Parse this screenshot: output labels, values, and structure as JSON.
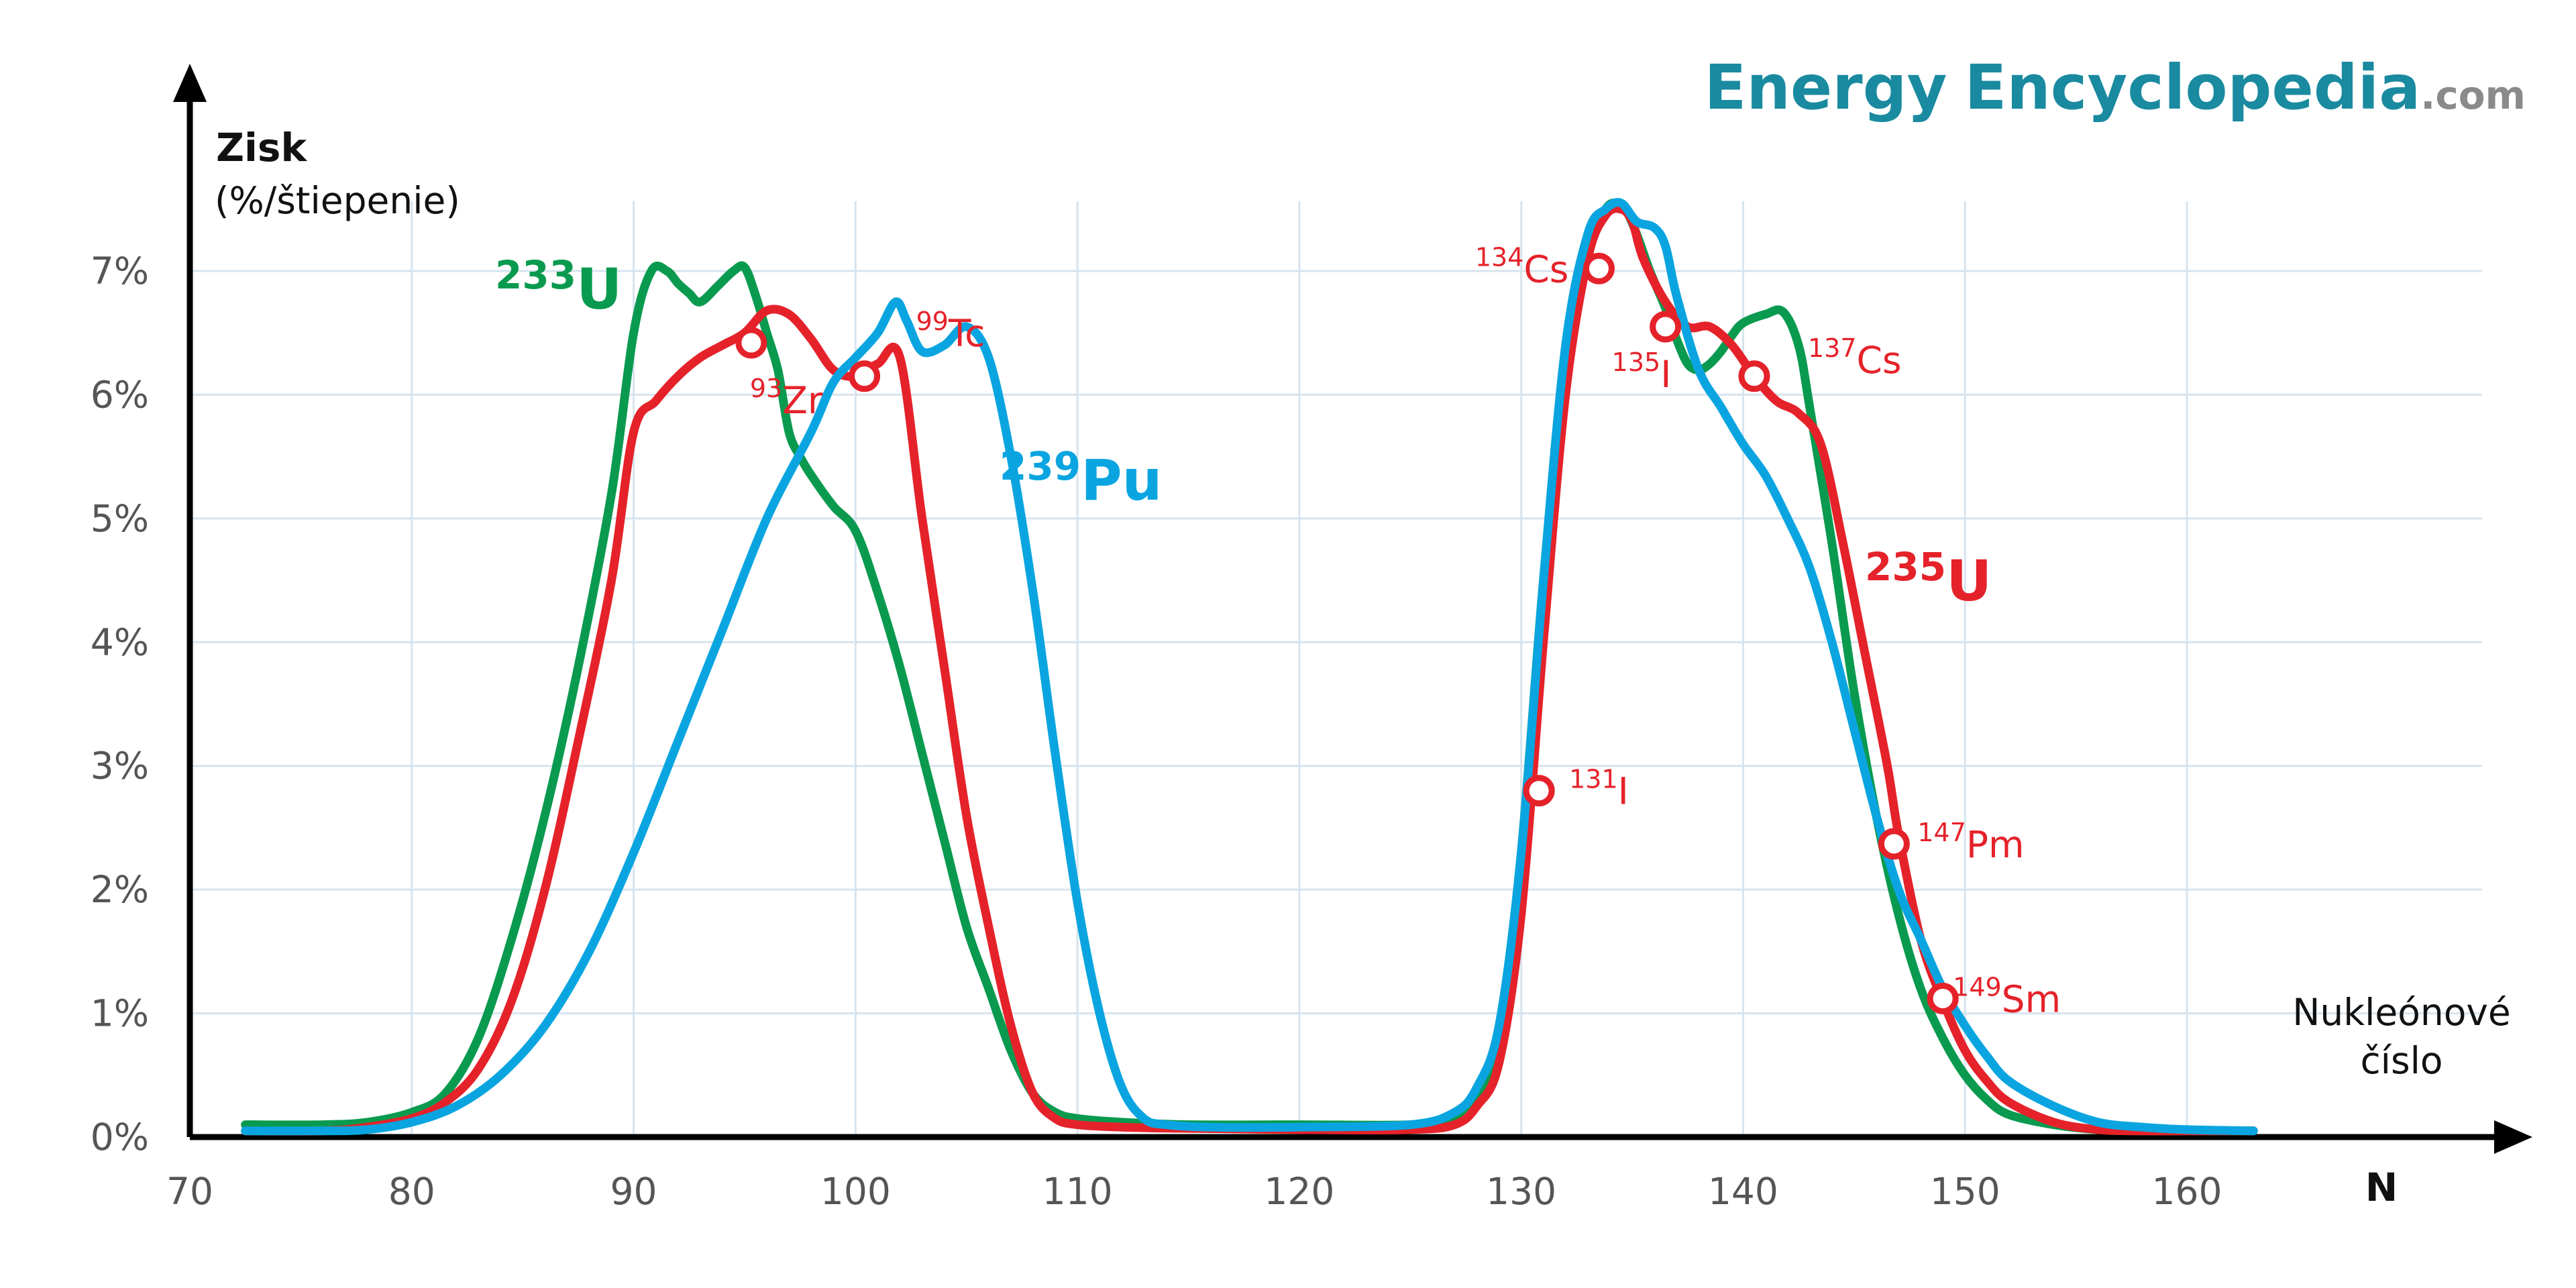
{
  "brand": {
    "part1": "Energy",
    "part2": "Encyclopedia",
    "suffix": ".com",
    "color": "#1a8aa0",
    "suffix_color": "#8a8a8a"
  },
  "chart_data": {
    "type": "line",
    "title": "",
    "ylabel": "Zisk",
    "ylabel_unit": "(%/štiepenie)",
    "xlabel": "Nukleónové",
    "xlabel_line2": "číslo",
    "xlabel_symbol": "N",
    "xlim": [
      70,
      165
    ],
    "ylim": [
      0,
      7.8
    ],
    "grid": true,
    "x_ticks": [
      70,
      80,
      90,
      100,
      110,
      120,
      130,
      140,
      150,
      160
    ],
    "x_tick_labels": [
      "70",
      "80",
      "90",
      "100",
      "110",
      "120",
      "130",
      "140",
      "150",
      "160"
    ],
    "y_ticks": [
      0,
      1,
      2,
      3,
      4,
      5,
      6,
      7
    ],
    "y_tick_labels": [
      "0%",
      "1%",
      "2%",
      "3%",
      "4%",
      "5%",
      "6%",
      "7%"
    ],
    "series": [
      {
        "name": "U",
        "mass": "233",
        "color": "#0a9a4f",
        "x": [
          72.5,
          76,
          78,
          80,
          81.5,
          83,
          84.5,
          86,
          87.5,
          89,
          90,
          90.8,
          91.5,
          92,
          92.5,
          93,
          93.8,
          94.5,
          95,
          95.5,
          96,
          96.5,
          97,
          97.5,
          98,
          99,
          100,
          101,
          102,
          103,
          104,
          105,
          106,
          107,
          108,
          109,
          110,
          112,
          115,
          120,
          125,
          127,
          128,
          129,
          130,
          131,
          132,
          133,
          133.8,
          134.3,
          134.7,
          135.2,
          135.8,
          136.5,
          137,
          137.5,
          138,
          138.5,
          139,
          139.5,
          140,
          141,
          141.8,
          142.5,
          143,
          144,
          145,
          146,
          147,
          148,
          149,
          150,
          151,
          152,
          154,
          156,
          158,
          160,
          163
        ],
        "values": [
          0.1,
          0.1,
          0.12,
          0.2,
          0.35,
          0.8,
          1.6,
          2.6,
          3.8,
          5.2,
          6.5,
          7.0,
          7.0,
          6.9,
          6.82,
          6.75,
          6.88,
          7.0,
          7.03,
          6.8,
          6.5,
          6.2,
          5.7,
          5.5,
          5.35,
          5.1,
          4.9,
          4.4,
          3.8,
          3.1,
          2.4,
          1.7,
          1.2,
          0.7,
          0.35,
          0.2,
          0.15,
          0.12,
          0.1,
          0.1,
          0.1,
          0.15,
          0.3,
          0.8,
          2.3,
          4.5,
          6.3,
          7.2,
          7.5,
          7.55,
          7.5,
          7.3,
          7.0,
          6.7,
          6.45,
          6.25,
          6.2,
          6.25,
          6.35,
          6.48,
          6.58,
          6.65,
          6.67,
          6.4,
          5.9,
          4.8,
          3.6,
          2.6,
          1.8,
          1.2,
          0.8,
          0.5,
          0.3,
          0.18,
          0.1,
          0.06,
          0.05,
          0.05,
          0.05
        ]
      },
      {
        "name": "U",
        "mass": "235",
        "color": "#e5222a",
        "x": [
          72.5,
          76,
          78,
          80,
          81.5,
          83,
          84.5,
          86,
          87.5,
          89,
          90,
          91,
          92,
          93,
          94,
          95,
          96,
          97,
          98,
          99,
          100,
          101,
          102,
          103,
          104,
          105,
          106,
          107,
          108,
          109,
          110,
          112,
          115,
          120,
          125,
          127,
          128,
          129,
          130,
          131,
          132,
          133,
          133.8,
          134.5,
          135,
          135.5,
          136.5,
          137.5,
          138.5,
          139.5,
          140.5,
          141.5,
          142.5,
          143.5,
          144.5,
          145.5,
          146.5,
          147,
          148,
          149,
          150,
          151,
          152,
          154,
          156,
          158,
          160,
          163
        ],
        "values": [
          0.05,
          0.05,
          0.08,
          0.15,
          0.28,
          0.55,
          1.1,
          2.0,
          3.2,
          4.5,
          5.7,
          5.95,
          6.15,
          6.3,
          6.4,
          6.5,
          6.68,
          6.65,
          6.45,
          6.2,
          6.15,
          6.25,
          6.3,
          5.0,
          3.8,
          2.6,
          1.7,
          0.9,
          0.35,
          0.15,
          0.1,
          0.08,
          0.07,
          0.06,
          0.06,
          0.1,
          0.25,
          0.6,
          1.8,
          4.0,
          6.0,
          7.1,
          7.45,
          7.5,
          7.4,
          7.1,
          6.75,
          6.55,
          6.55,
          6.4,
          6.15,
          5.95,
          5.85,
          5.6,
          4.8,
          3.9,
          3.0,
          2.45,
          1.6,
          1.1,
          0.7,
          0.45,
          0.28,
          0.12,
          0.06,
          0.05,
          0.05,
          0.05
        ]
      },
      {
        "name": "Pu",
        "mass": "239",
        "color": "#0aa5e0",
        "x": [
          72.5,
          76,
          78,
          80,
          82,
          84,
          86,
          88,
          90,
          92,
          94,
          96,
          98,
          99,
          100,
          101,
          101.8,
          102.3,
          103,
          104,
          105,
          106,
          107,
          108,
          109,
          110,
          111,
          112,
          113,
          114,
          116,
          120,
          125,
          127,
          128,
          129,
          130,
          131,
          132,
          133,
          133.8,
          134.5,
          135.2,
          136,
          136.5,
          137,
          138,
          139,
          140,
          141,
          142,
          143,
          144,
          145,
          146,
          147,
          148,
          149,
          150,
          151,
          152,
          154,
          156,
          158,
          160,
          163
        ],
        "values": [
          0.05,
          0.05,
          0.06,
          0.12,
          0.25,
          0.5,
          0.9,
          1.5,
          2.3,
          3.2,
          4.1,
          5.0,
          5.7,
          6.1,
          6.3,
          6.5,
          6.75,
          6.6,
          6.35,
          6.4,
          6.55,
          6.3,
          5.5,
          4.4,
          3.1,
          1.9,
          1.0,
          0.4,
          0.15,
          0.1,
          0.08,
          0.08,
          0.1,
          0.2,
          0.4,
          0.9,
          2.3,
          4.5,
          6.4,
          7.3,
          7.5,
          7.55,
          7.4,
          7.35,
          7.2,
          6.8,
          6.2,
          5.9,
          5.6,
          5.35,
          5.0,
          4.6,
          4.0,
          3.3,
          2.6,
          2.0,
          1.6,
          1.2,
          0.9,
          0.65,
          0.45,
          0.25,
          0.12,
          0.08,
          0.06,
          0.05
        ]
      }
    ],
    "annotations": [
      {
        "mass": "93",
        "symbol": "Zr",
        "x": 95.3,
        "y": 6.42
      },
      {
        "mass": "99",
        "symbol": "Tc",
        "x": 100.4,
        "y": 6.15
      },
      {
        "mass": "131",
        "symbol": "I",
        "x": 130.8,
        "y": 2.8
      },
      {
        "mass": "134",
        "symbol": "Cs",
        "x": 133.5,
        "y": 7.02
      },
      {
        "mass": "135",
        "symbol": "I",
        "x": 136.5,
        "y": 6.55
      },
      {
        "mass": "137",
        "symbol": "Cs",
        "x": 140.5,
        "y": 6.15
      },
      {
        "mass": "147",
        "symbol": "Pm",
        "x": 146.8,
        "y": 2.37
      },
      {
        "mass": "149",
        "symbol": "Sm",
        "x": 149.0,
        "y": 1.12
      }
    ],
    "annotation_color": "#e5222a"
  }
}
